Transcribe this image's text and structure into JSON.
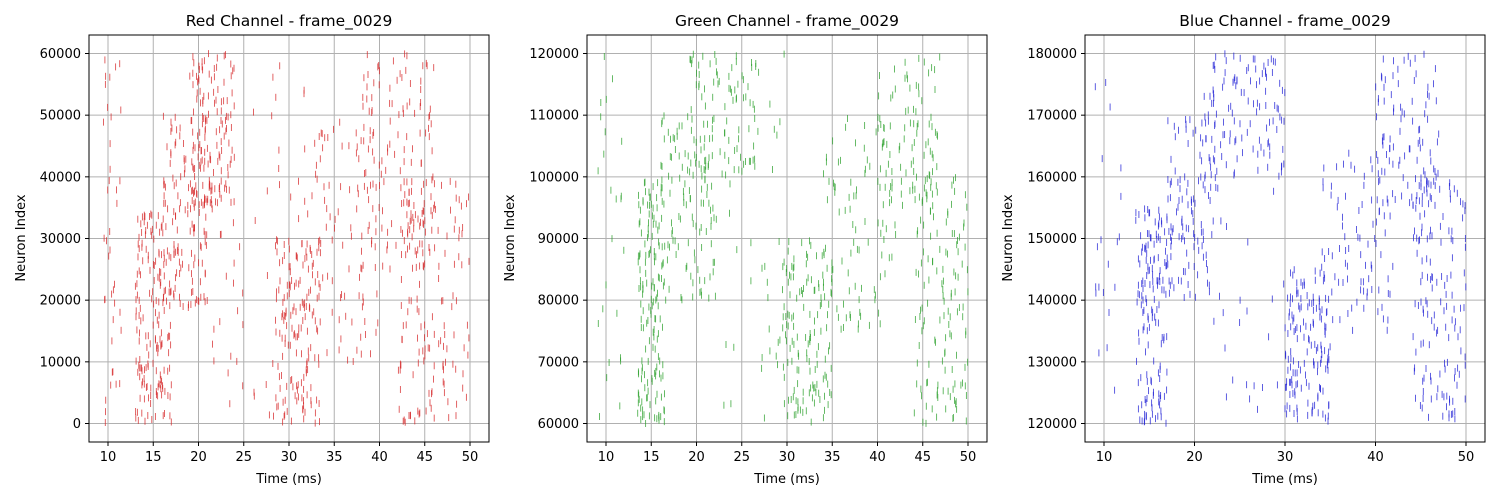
{
  "chart_data": [
    {
      "type": "scatter",
      "title": "Red Channel - frame_0029",
      "xlabel": "Time (ms)",
      "ylabel": "Neuron Index",
      "xlim": [
        7.9,
        52.1
      ],
      "ylim": [
        -3000,
        63000
      ],
      "xticks": [
        10,
        15,
        20,
        25,
        30,
        35,
        40,
        45,
        50
      ],
      "yticks": [
        0,
        10000,
        20000,
        30000,
        40000,
        50000,
        60000
      ],
      "grid": true,
      "color": "#d62728",
      "clusters": [
        {
          "t": [
            9.5,
            11.5
          ],
          "n": [
            0,
            60000
          ],
          "count": 40
        },
        {
          "t": [
            13,
            17
          ],
          "n": [
            0,
            35000
          ],
          "count": 170
        },
        {
          "t": [
            16,
            21
          ],
          "n": [
            18000,
            50000
          ],
          "count": 140
        },
        {
          "t": [
            19,
            24
          ],
          "n": [
            35000,
            60000
          ],
          "count": 130
        },
        {
          "t": [
            21,
            32
          ],
          "n": [
            0,
            60000
          ],
          "count": 60
        },
        {
          "t": [
            28.5,
            33.5
          ],
          "n": [
            0,
            30000
          ],
          "count": 150
        },
        {
          "t": [
            32,
            40
          ],
          "n": [
            10000,
            50000
          ],
          "count": 90
        },
        {
          "t": [
            38,
            46
          ],
          "n": [
            25000,
            60000
          ],
          "count": 130
        },
        {
          "t": [
            42,
            50
          ],
          "n": [
            0,
            40000
          ],
          "count": 150
        }
      ]
    },
    {
      "type": "scatter",
      "title": "Green Channel - frame_0029",
      "xlabel": "Time (ms)",
      "ylabel": "Neuron Index",
      "xlim": [
        7.9,
        52.1
      ],
      "ylim": [
        57000,
        123000
      ],
      "xticks": [
        10,
        15,
        20,
        25,
        30,
        35,
        40,
        45,
        50
      ],
      "yticks": [
        60000,
        70000,
        80000,
        90000,
        100000,
        110000,
        120000
      ],
      "grid": true,
      "color": "#2ca02c",
      "clusters": [
        {
          "t": [
            9,
            12
          ],
          "n": [
            60000,
            120000
          ],
          "count": 25
        },
        {
          "t": [
            13.5,
            16.5
          ],
          "n": [
            60000,
            100000
          ],
          "count": 160
        },
        {
          "t": [
            16,
            22
          ],
          "n": [
            80000,
            110000
          ],
          "count": 110
        },
        {
          "t": [
            19,
            27
          ],
          "n": [
            100000,
            120000
          ],
          "count": 90
        },
        {
          "t": [
            22,
            30
          ],
          "n": [
            60000,
            120000
          ],
          "count": 40
        },
        {
          "t": [
            29.5,
            35
          ],
          "n": [
            60000,
            90000
          ],
          "count": 140
        },
        {
          "t": [
            34,
            42
          ],
          "n": [
            75000,
            110000
          ],
          "count": 90
        },
        {
          "t": [
            40,
            47
          ],
          "n": [
            95000,
            120000
          ],
          "count": 90
        },
        {
          "t": [
            44,
            50
          ],
          "n": [
            60000,
            100000
          ],
          "count": 130
        }
      ]
    },
    {
      "type": "scatter",
      "title": "Blue Channel - frame_0029",
      "xlabel": "Time (ms)",
      "ylabel": "Neuron Index",
      "xlim": [
        7.9,
        52.1
      ],
      "ylim": [
        117000,
        183000
      ],
      "xticks": [
        10,
        20,
        30,
        40,
        50
      ],
      "yticks": [
        120000,
        130000,
        140000,
        150000,
        160000,
        170000,
        180000
      ],
      "grid": true,
      "color": "#1f1fd6",
      "clusters": [
        {
          "t": [
            9,
            12
          ],
          "n": [
            120000,
            180000
          ],
          "count": 20
        },
        {
          "t": [
            13.5,
            17
          ],
          "n": [
            120000,
            155000
          ],
          "count": 150
        },
        {
          "t": [
            17,
            22
          ],
          "n": [
            140000,
            170000
          ],
          "count": 110
        },
        {
          "t": [
            21,
            30
          ],
          "n": [
            160000,
            180000
          ],
          "count": 100
        },
        {
          "t": [
            22,
            30
          ],
          "n": [
            120000,
            180000
          ],
          "count": 40
        },
        {
          "t": [
            30,
            35
          ],
          "n": [
            120000,
            145000
          ],
          "count": 150
        },
        {
          "t": [
            34,
            42
          ],
          "n": [
            135000,
            165000
          ],
          "count": 90
        },
        {
          "t": [
            40,
            47
          ],
          "n": [
            155000,
            180000
          ],
          "count": 100
        },
        {
          "t": [
            44,
            50
          ],
          "n": [
            120000,
            160000
          ],
          "count": 140
        }
      ]
    }
  ]
}
